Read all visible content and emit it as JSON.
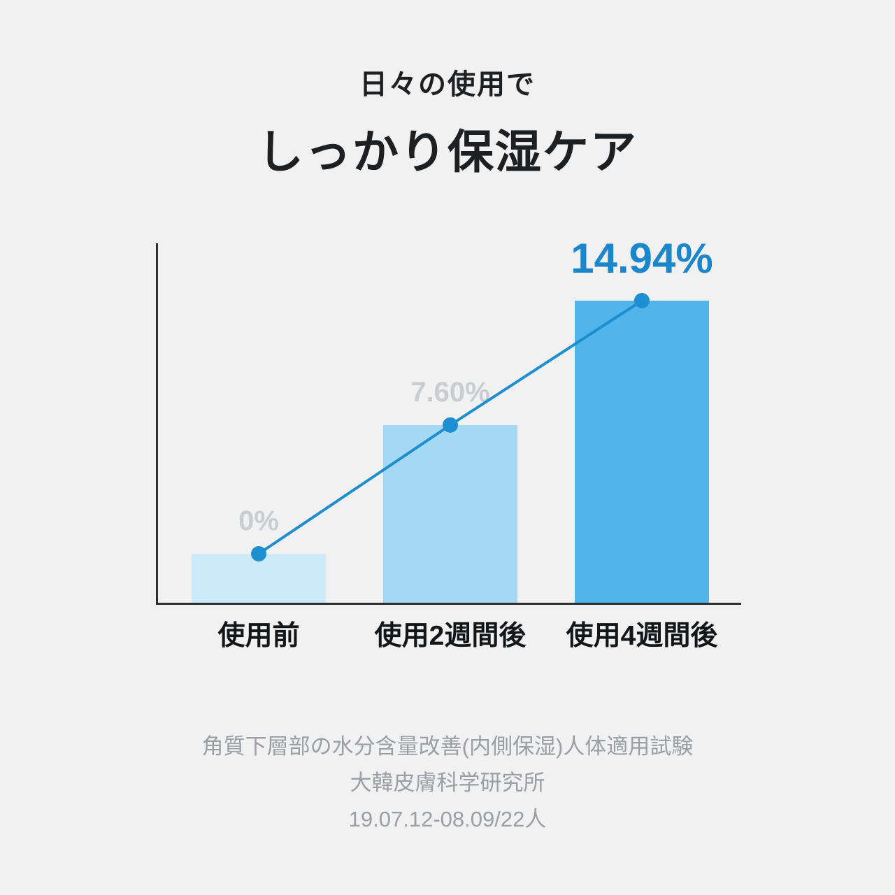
{
  "title": {
    "line1": "日々の使用で",
    "line2": "しっかり保湿ケア"
  },
  "chart_data": {
    "type": "bar",
    "overlay": "line",
    "categories": [
      "使用前",
      "使用2週間後",
      "使用4週間後"
    ],
    "values": [
      0,
      7.6,
      14.94
    ],
    "value_labels": [
      "0%",
      "7.60%",
      "14.94%"
    ],
    "unit": "%",
    "ylim": [
      0,
      16
    ],
    "grid": false,
    "legend": "none",
    "bar_colors": [
      "#cdeafb",
      "#a5d8f3",
      "#52b5e9"
    ],
    "value_label_colors": [
      "#c9cdd2",
      "#c9cdd2",
      "#1b86c9"
    ],
    "line_color": "#1d8fd1",
    "marker_color": "#1d8fd1",
    "axis_color": "#2f2f31",
    "title": "日々の使用で しっかり保湿ケア",
    "xlabel": "",
    "ylabel": ""
  },
  "footnote": {
    "line1": "角質下層部の水分含量改善(内側保湿)人体適用試験",
    "line2": "大韓皮膚科学研究所",
    "line3": "19.07.12-08.09/22人"
  },
  "colors": {
    "background": "#f1f1f2",
    "title_text": "#1e1f21",
    "footnote_text": "#9b9ea3"
  }
}
